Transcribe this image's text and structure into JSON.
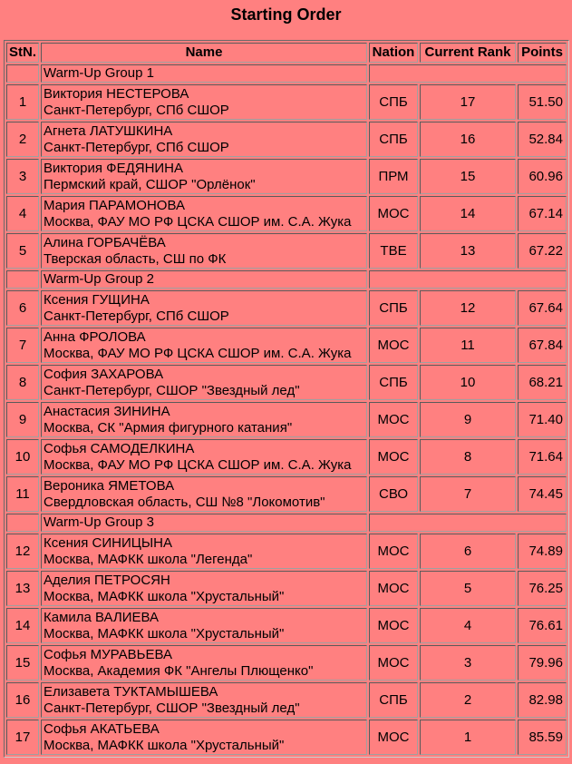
{
  "title": "Starting Order",
  "headers": {
    "stn": "StN.",
    "name": "Name",
    "nation": "Nation",
    "rank": "Current Rank",
    "points": "Points"
  },
  "groups": [
    {
      "label": "Warm-Up Group 1",
      "skaters": [
        {
          "stn": "1",
          "name": "Виктория НЕСТЕРОВА",
          "club": "Санкт-Петербург, СПб СШОР",
          "nation": "СПБ",
          "rank": "17",
          "points": "51.50"
        },
        {
          "stn": "2",
          "name": "Агнета ЛАТУШКИНА",
          "club": "Санкт-Петербург, СПб СШОР",
          "nation": "СПБ",
          "rank": "16",
          "points": "52.84"
        },
        {
          "stn": "3",
          "name": "Виктория ФЕДЯНИНА",
          "club": "Пермский край, СШОР \"Орлёнок\"",
          "nation": "ПРМ",
          "rank": "15",
          "points": "60.96"
        },
        {
          "stn": "4",
          "name": "Мария ПАРАМОНОВА",
          "club": "Москва, ФАУ МО РФ ЦСКА СШОР им. С.А. Жука",
          "nation": "МОС",
          "rank": "14",
          "points": "67.14"
        },
        {
          "stn": "5",
          "name": "Алина ГОРБАЧЁВА",
          "club": "Тверская область, СШ по ФК",
          "nation": "ТВЕ",
          "rank": "13",
          "points": "67.22"
        }
      ]
    },
    {
      "label": "Warm-Up Group 2",
      "skaters": [
        {
          "stn": "6",
          "name": "Ксения ГУЩИНА",
          "club": "Санкт-Петербург, СПб СШОР",
          "nation": "СПБ",
          "rank": "12",
          "points": "67.64"
        },
        {
          "stn": "7",
          "name": "Анна ФРОЛОВА",
          "club": "Москва, ФАУ МО РФ ЦСКА СШОР им. С.А. Жука",
          "nation": "МОС",
          "rank": "11",
          "points": "67.84"
        },
        {
          "stn": "8",
          "name": "София ЗАХАРОВА",
          "club": "Санкт-Петербург, СШОР \"Звездный лед\"",
          "nation": "СПБ",
          "rank": "10",
          "points": "68.21"
        },
        {
          "stn": "9",
          "name": "Анастасия ЗИНИНА",
          "club": "Москва, СК \"Армия фигурного катания\"",
          "nation": "МОС",
          "rank": "9",
          "points": "71.40"
        },
        {
          "stn": "10",
          "name": "Софья САМОДЕЛКИНА",
          "club": "Москва, ФАУ МО РФ ЦСКА СШОР им. С.А. Жука",
          "nation": "МОС",
          "rank": "8",
          "points": "71.64"
        },
        {
          "stn": "11",
          "name": "Вероника ЯМЕТОВА",
          "club": "Свердловская область, СШ №8 \"Локомотив\"",
          "nation": "СВО",
          "rank": "7",
          "points": "74.45"
        }
      ]
    },
    {
      "label": "Warm-Up Group 3",
      "skaters": [
        {
          "stn": "12",
          "name": "Ксения СИНИЦЫНА",
          "club": "Москва, МАФКК школа \"Легенда\"",
          "nation": "МОС",
          "rank": "6",
          "points": "74.89"
        },
        {
          "stn": "13",
          "name": "Аделия ПЕТРОСЯН",
          "club": "Москва, МАФКК школа \"Хрустальный\"",
          "nation": "МОС",
          "rank": "5",
          "points": "76.25"
        },
        {
          "stn": "14",
          "name": "Камила ВАЛИЕВА",
          "club": "Москва, МАФКК школа \"Хрустальный\"",
          "nation": "МОС",
          "rank": "4",
          "points": "76.61"
        },
        {
          "stn": "15",
          "name": "Софья МУРАВЬЕВА",
          "club": "Москва, Академия ФК \"Ангелы Плющенко\"",
          "nation": "МОС",
          "rank": "3",
          "points": "79.96"
        },
        {
          "stn": "16",
          "name": "Елизавета ТУКТАМЫШЕВА",
          "club": "Санкт-Петербург, СШОР \"Звездный лед\"",
          "nation": "СПБ",
          "rank": "2",
          "points": "82.98"
        },
        {
          "stn": "17",
          "name": "Софья АКАТЬЕВА",
          "club": "Москва, МАФКК школа \"Хрустальный\"",
          "nation": "МОС",
          "rank": "1",
          "points": "85.59"
        }
      ]
    }
  ]
}
